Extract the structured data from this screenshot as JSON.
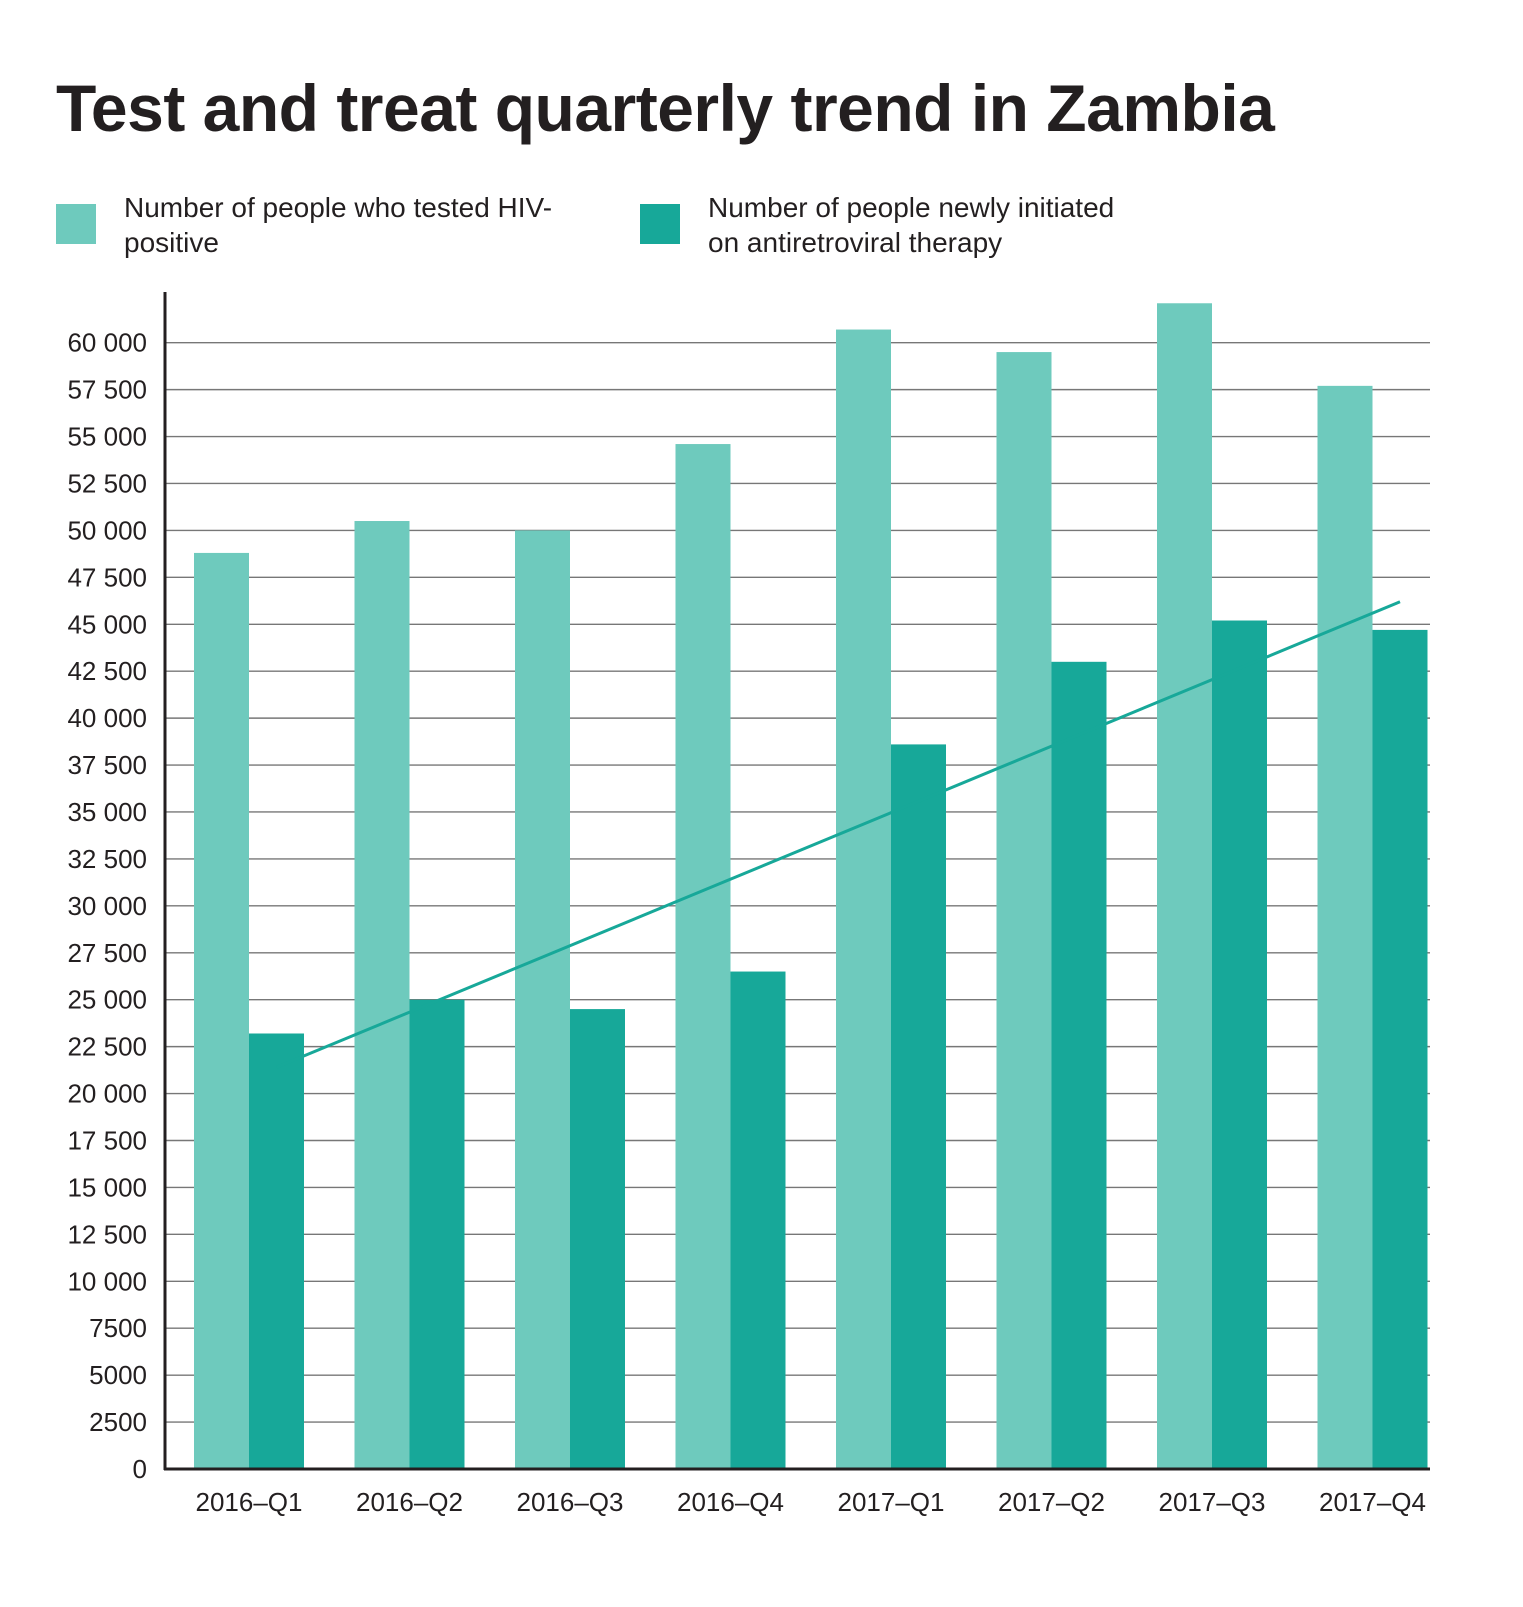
{
  "chart_data": {
    "type": "bar",
    "title": "Test and treat quarterly trend in Zambia",
    "categories": [
      "2016–Q1",
      "2016–Q2",
      "2016–Q3",
      "2016–Q4",
      "2017–Q1",
      "2017–Q2",
      "2017–Q3",
      "2017–Q4"
    ],
    "series": [
      {
        "name": "Number of people who tested HIV-positive",
        "color": "#6ecabd",
        "values": [
          48800,
          50500,
          50000,
          54600,
          60700,
          59500,
          62100,
          57700
        ]
      },
      {
        "name": "Number of people newly initiated on antiretroviral therapy",
        "color": "#17a899",
        "values": [
          23200,
          25000,
          24500,
          26500,
          38600,
          43000,
          45200,
          44700
        ]
      }
    ],
    "trendline": {
      "series": "Number of people newly initiated on antiretroviral therapy",
      "color": "#17a899",
      "start": {
        "category": "2016–Q1",
        "value": 21400
      },
      "end": {
        "category": "2017–Q4",
        "value": 46200
      }
    },
    "y_ticks": [
      {
        "value": 0,
        "label": "0"
      },
      {
        "value": 2500,
        "label": "2500"
      },
      {
        "value": 5000,
        "label": "5000"
      },
      {
        "value": 7500,
        "label": "7500"
      },
      {
        "value": 10000,
        "label": "10 000"
      },
      {
        "value": 12500,
        "label": "12 500"
      },
      {
        "value": 15000,
        "label": "15 000"
      },
      {
        "value": 17500,
        "label": "17 500"
      },
      {
        "value": 20000,
        "label": "20 000"
      },
      {
        "value": 22500,
        "label": "22 500"
      },
      {
        "value": 25000,
        "label": "25 000"
      },
      {
        "value": 27500,
        "label": "27 500"
      },
      {
        "value": 30000,
        "label": "30 000"
      },
      {
        "value": 32500,
        "label": "32 500"
      },
      {
        "value": 35000,
        "label": "35 000"
      },
      {
        "value": 37500,
        "label": "37 500"
      },
      {
        "value": 40000,
        "label": "40 000"
      },
      {
        "value": 42500,
        "label": "42 500"
      },
      {
        "value": 45000,
        "label": "45 000"
      },
      {
        "value": 47500,
        "label": "47 500"
      },
      {
        "value": 50000,
        "label": "50 000"
      },
      {
        "value": 52500,
        "label": "52 500"
      },
      {
        "value": 55000,
        "label": "55 000"
      },
      {
        "value": 57500,
        "label": "57 500"
      },
      {
        "value": 60000,
        "label": "60 000"
      }
    ],
    "ylim": [
      0,
      62700
    ],
    "grid": true,
    "legend_position": "top"
  }
}
